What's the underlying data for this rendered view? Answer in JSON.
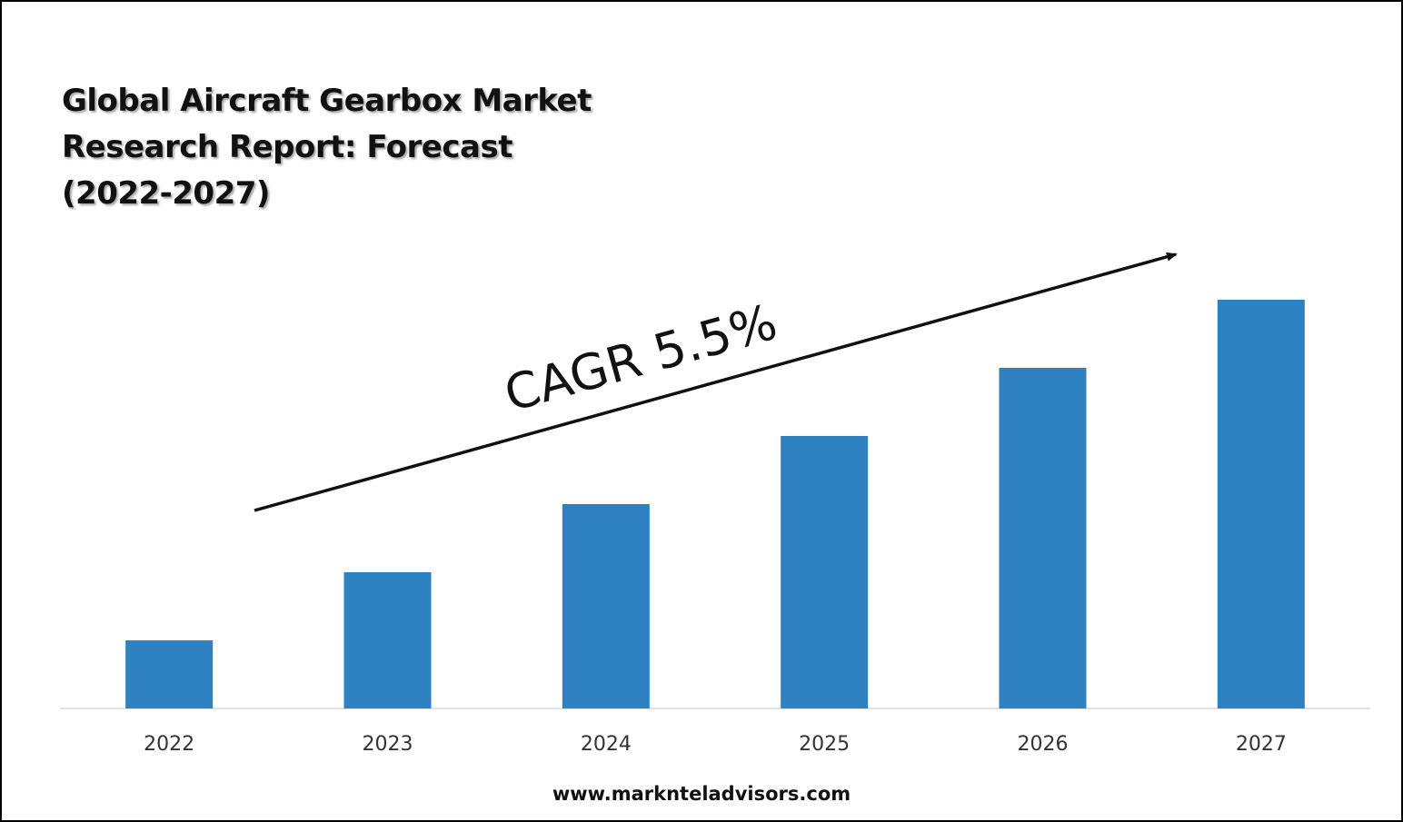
{
  "title_lines": [
    "Global Aircraft Gearbox Market",
    "Research Report: Forecast",
    "(2022-2027)"
  ],
  "annotation": "CAGR 5.5%",
  "footer": "www.marknteladvisors.com",
  "colors": {
    "bar": "#2E82C2",
    "text": "#111111",
    "axis": "#D9D9D9"
  },
  "chart_data": {
    "type": "bar",
    "categories": [
      "2022",
      "2023",
      "2024",
      "2025",
      "2026",
      "2027"
    ],
    "values": [
      1,
      2,
      3,
      4,
      5,
      6
    ],
    "ylim": [
      0,
      6
    ],
    "grid": false,
    "legend": "none",
    "annotations": [
      {
        "text": "CAGR 5.5%",
        "style": "rising arrow across bars"
      }
    ]
  }
}
